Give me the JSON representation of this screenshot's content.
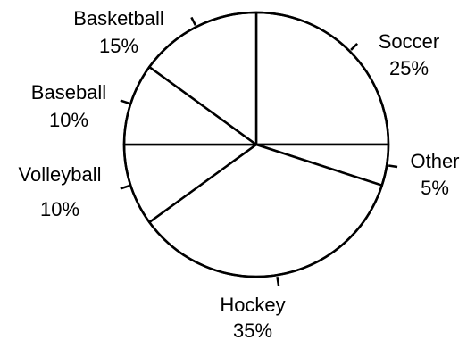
{
  "chart_data": {
    "type": "pie",
    "title": "",
    "start_angle_deg": 90,
    "direction": "clockwise",
    "slices": [
      {
        "name": "Soccer",
        "value": 25,
        "label": "25%"
      },
      {
        "name": "Other",
        "value": 5,
        "label": "5%"
      },
      {
        "name": "Hockey",
        "value": 35,
        "label": "35%"
      },
      {
        "name": "Volleyball",
        "value": 10,
        "label": "10%"
      },
      {
        "name": "Baseball",
        "value": 10,
        "label": "10%"
      },
      {
        "name": "Basketball",
        "value": 15,
        "label": "15%"
      }
    ],
    "fill_color": "#ffffff",
    "stroke_color": "#000000"
  }
}
